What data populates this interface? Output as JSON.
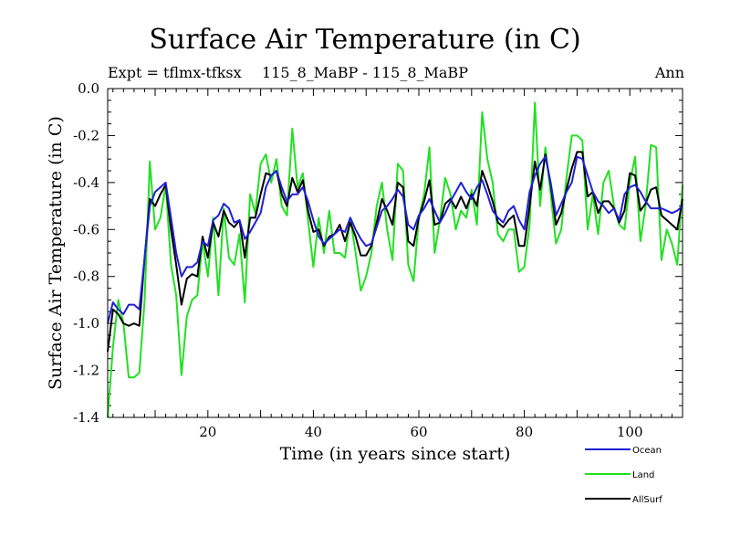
{
  "header": {
    "title": "Surface Air Temperature (in C)",
    "expt": "Expt = tflmx-tfksx",
    "case": "115_8_MaBP - 115_8_MaBP",
    "period": "Ann"
  },
  "chart_data": {
    "type": "line",
    "title": "Surface Air Temperature (in C)",
    "xlabel": "Time (in years since start)",
    "ylabel": "Surface Air Temperature (in C)",
    "xlim": [
      1,
      110
    ],
    "ylim": [
      -1.4,
      0.0
    ],
    "x_ticks": [
      20,
      40,
      60,
      80,
      100
    ],
    "x_tick_labels": [
      "20",
      "40",
      "60",
      "80",
      "100"
    ],
    "y_ticks": [
      0.0,
      -0.2,
      -0.4,
      -0.6,
      -0.8,
      -1.0,
      -1.2,
      -1.4
    ],
    "y_tick_labels": [
      "0.0",
      "-0.2",
      "-0.4",
      "-0.6",
      "-0.8",
      "-1.0",
      "-1.2",
      "-1.4"
    ],
    "x": [
      1,
      2,
      3,
      4,
      5,
      6,
      7,
      8,
      9,
      10,
      11,
      12,
      13,
      14,
      15,
      16,
      17,
      18,
      19,
      20,
      21,
      22,
      23,
      24,
      25,
      26,
      27,
      28,
      29,
      30,
      31,
      32,
      33,
      34,
      35,
      36,
      37,
      38,
      39,
      40,
      41,
      42,
      43,
      44,
      45,
      46,
      47,
      48,
      49,
      50,
      51,
      52,
      53,
      54,
      55,
      56,
      57,
      58,
      59,
      60,
      61,
      62,
      63,
      64,
      65,
      66,
      67,
      68,
      69,
      70,
      71,
      72,
      73,
      74,
      75,
      76,
      77,
      78,
      79,
      80,
      81,
      82,
      83,
      84,
      85,
      86,
      87,
      88,
      89,
      90,
      91,
      92,
      93,
      94,
      95,
      96,
      97,
      98,
      99,
      100,
      101,
      102,
      103,
      104,
      105,
      106,
      107,
      108,
      109,
      110
    ],
    "series": [
      {
        "name": "Ocean",
        "color": "#1f1fd6",
        "values": [
          -1.0,
          -0.91,
          -0.94,
          -0.96,
          -0.92,
          -0.92,
          -0.94,
          -0.72,
          -0.5,
          -0.44,
          -0.42,
          -0.4,
          -0.55,
          -0.7,
          -0.8,
          -0.76,
          -0.76,
          -0.74,
          -0.65,
          -0.67,
          -0.56,
          -0.54,
          -0.49,
          -0.51,
          -0.57,
          -0.56,
          -0.64,
          -0.61,
          -0.57,
          -0.53,
          -0.42,
          -0.37,
          -0.35,
          -0.42,
          -0.48,
          -0.45,
          -0.45,
          -0.42,
          -0.48,
          -0.56,
          -0.63,
          -0.66,
          -0.64,
          -0.62,
          -0.6,
          -0.61,
          -0.55,
          -0.6,
          -0.64,
          -0.67,
          -0.66,
          -0.59,
          -0.52,
          -0.5,
          -0.47,
          -0.43,
          -0.46,
          -0.58,
          -0.6,
          -0.54,
          -0.51,
          -0.47,
          -0.52,
          -0.57,
          -0.53,
          -0.48,
          -0.44,
          -0.4,
          -0.44,
          -0.47,
          -0.42,
          -0.39,
          -0.45,
          -0.52,
          -0.55,
          -0.57,
          -0.52,
          -0.5,
          -0.56,
          -0.6,
          -0.44,
          -0.37,
          -0.32,
          -0.29,
          -0.4,
          -0.54,
          -0.49,
          -0.44,
          -0.4,
          -0.29,
          -0.3,
          -0.37,
          -0.44,
          -0.48,
          -0.5,
          -0.53,
          -0.51,
          -0.56,
          -0.45,
          -0.42,
          -0.41,
          -0.44,
          -0.48,
          -0.51,
          -0.51,
          -0.51,
          -0.52,
          -0.53,
          -0.52,
          -0.5
        ]
      },
      {
        "name": "Land",
        "color": "#22e022",
        "values": [
          -1.4,
          -1.1,
          -0.9,
          -1.0,
          -1.23,
          -1.23,
          -1.21,
          -0.9,
          -0.31,
          -0.6,
          -0.55,
          -0.41,
          -0.75,
          -0.88,
          -1.22,
          -0.97,
          -0.9,
          -0.88,
          -0.65,
          -0.8,
          -0.55,
          -0.88,
          -0.51,
          -0.72,
          -0.75,
          -0.62,
          -0.91,
          -0.45,
          -0.53,
          -0.32,
          -0.28,
          -0.4,
          -0.3,
          -0.5,
          -0.54,
          -0.17,
          -0.42,
          -0.36,
          -0.56,
          -0.76,
          -0.55,
          -0.7,
          -0.52,
          -0.7,
          -0.7,
          -0.72,
          -0.55,
          -0.7,
          -0.86,
          -0.8,
          -0.7,
          -0.5,
          -0.4,
          -0.6,
          -0.73,
          -0.32,
          -0.35,
          -0.75,
          -0.82,
          -0.55,
          -0.45,
          -0.25,
          -0.7,
          -0.56,
          -0.38,
          -0.45,
          -0.6,
          -0.52,
          -0.55,
          -0.43,
          -0.58,
          -0.1,
          -0.3,
          -0.4,
          -0.62,
          -0.65,
          -0.6,
          -0.6,
          -0.78,
          -0.76,
          -0.58,
          -0.06,
          -0.5,
          -0.25,
          -0.45,
          -0.66,
          -0.6,
          -0.38,
          -0.2,
          -0.2,
          -0.22,
          -0.6,
          -0.45,
          -0.62,
          -0.4,
          -0.35,
          -0.5,
          -0.58,
          -0.6,
          -0.4,
          -0.29,
          -0.65,
          -0.5,
          -0.24,
          -0.25,
          -0.73,
          -0.6,
          -0.66,
          -0.75,
          -0.41
        ]
      },
      {
        "name": "AllSurf",
        "color": "#000000",
        "values": [
          -1.12,
          -0.94,
          -0.96,
          -1.0,
          -1.01,
          -1.0,
          -1.01,
          -0.72,
          -0.47,
          -0.5,
          -0.45,
          -0.41,
          -0.6,
          -0.75,
          -0.92,
          -0.81,
          -0.79,
          -0.8,
          -0.63,
          -0.72,
          -0.57,
          -0.63,
          -0.52,
          -0.57,
          -0.59,
          -0.56,
          -0.72,
          -0.55,
          -0.55,
          -0.45,
          -0.36,
          -0.37,
          -0.35,
          -0.45,
          -0.5,
          -0.38,
          -0.44,
          -0.39,
          -0.52,
          -0.61,
          -0.6,
          -0.67,
          -0.63,
          -0.62,
          -0.58,
          -0.65,
          -0.57,
          -0.63,
          -0.71,
          -0.71,
          -0.67,
          -0.57,
          -0.47,
          -0.52,
          -0.58,
          -0.4,
          -0.42,
          -0.65,
          -0.67,
          -0.55,
          -0.48,
          -0.39,
          -0.58,
          -0.57,
          -0.49,
          -0.47,
          -0.51,
          -0.46,
          -0.51,
          -0.45,
          -0.5,
          -0.35,
          -0.41,
          -0.48,
          -0.57,
          -0.59,
          -0.56,
          -0.54,
          -0.67,
          -0.67,
          -0.5,
          -0.31,
          -0.43,
          -0.28,
          -0.41,
          -0.58,
          -0.53,
          -0.43,
          -0.34,
          -0.27,
          -0.27,
          -0.46,
          -0.44,
          -0.53,
          -0.48,
          -0.48,
          -0.51,
          -0.57,
          -0.52,
          -0.36,
          -0.37,
          -0.52,
          -0.49,
          -0.43,
          -0.42,
          -0.54,
          -0.56,
          -0.58,
          -0.6,
          -0.47
        ]
      }
    ],
    "legend": {
      "position": "bottom-right",
      "entries": [
        "Ocean",
        "Land",
        "AllSurf"
      ]
    }
  }
}
